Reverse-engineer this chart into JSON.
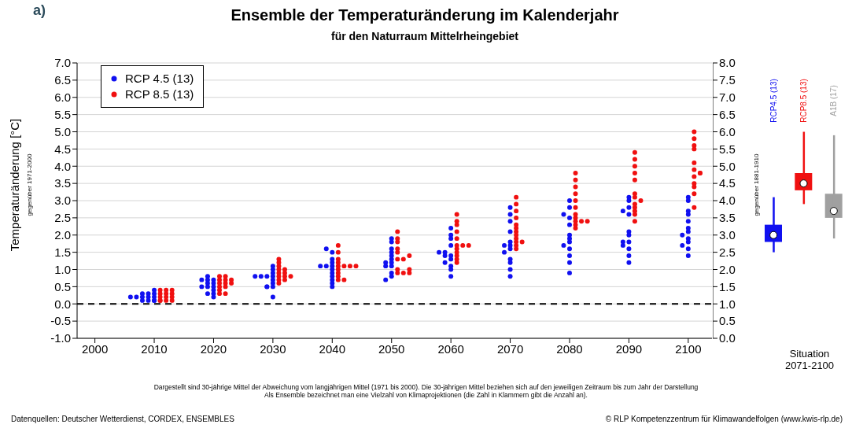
{
  "chart_data": [
    {
      "type": "scatter",
      "title": "Ensemble der Temperaturänderung im Kalenderjahr",
      "subtitle": "für den Naturraum Mittelrheingebiet",
      "ylabel": "Temperaturänderung [°C]",
      "annotations": [
        "a)",
        "gegenüber 1971-2000",
        "Dargestellt sind 30-jährige Mittel der Abweichung vom langjährigen Mittel (1971 bis 2000). Die 30-jährigen Mittel beziehen sich auf den jeweiligen Zeitraum bis zum Jahr der Darstellung",
        "Als Ensemble bezeichnet man eine Vielzahl von Klimaprojektionen (die Zahl in Klammern gibt die Anzahl an).",
        "Datenquellen: Deutscher Wetterdienst, CORDEX, ENSEMBLES",
        "© RLP Kompetenzzentrum für Klimawandelfolgen (www.kwis-rlp.de)"
      ],
      "xlim": [
        1997,
        2104
      ],
      "xticks": [
        2000,
        2010,
        2020,
        2030,
        2040,
        2050,
        2060,
        2070,
        2080,
        2090,
        2100
      ],
      "ylim": [
        -1,
        7
      ],
      "yticks": [
        {
          "value": -1,
          "label": "-1.0"
        },
        {
          "value": -0.5,
          "label": "-0.5"
        },
        {
          "value": 0,
          "label": "0.0"
        },
        {
          "value": 0.5,
          "label": "0.5"
        },
        {
          "value": 1,
          "label": "1.0"
        },
        {
          "value": 1.5,
          "label": "1.5"
        },
        {
          "value": 2,
          "label": "2.0"
        },
        {
          "value": 2.5,
          "label": "2.5"
        },
        {
          "value": 3,
          "label": "3.0"
        },
        {
          "value": 3.5,
          "label": "3.5"
        },
        {
          "value": 4,
          "label": "4.0"
        },
        {
          "value": 4.5,
          "label": "4.5"
        },
        {
          "value": 5,
          "label": "5.0"
        },
        {
          "value": 5.5,
          "label": "5.5"
        },
        {
          "value": 6,
          "label": "6.0"
        },
        {
          "value": 6.5,
          "label": "6.5"
        },
        {
          "value": 7,
          "label": "7.0"
        }
      ],
      "grid": "y",
      "legend": "top left",
      "marker": "circle",
      "ref_lines": [
        {
          "axis": "y",
          "value": 0,
          "color": "#000000",
          "line_style": "dashed"
        }
      ],
      "series": [
        {
          "name": "RCP 4.5 (13)",
          "color": "#1010f0",
          "x": [
            2006,
            2007,
            2008,
            2008,
            2009,
            2009,
            2009,
            2010,
            2010,
            2010,
            2010,
            2010,
            2008,
            2018,
            2018,
            2019,
            2019,
            2019,
            2019,
            2020,
            2020,
            2020,
            2020,
            2020,
            2020,
            2019,
            2030,
            2029,
            2030,
            2030,
            2027,
            2028,
            2029,
            2030,
            2030,
            2030,
            2030,
            2029,
            2030,
            2040,
            2040,
            2040,
            2040,
            2040,
            2040,
            2038,
            2039,
            2040,
            2040,
            2040,
            2040,
            2039,
            2049,
            2050,
            2050,
            2049,
            2050,
            2049,
            2050,
            2050,
            2050,
            2050,
            2050,
            2050,
            2050,
            2060,
            2060,
            2060,
            2059,
            2060,
            2059,
            2060,
            2058,
            2059,
            2060,
            2060,
            2060,
            2060,
            2070,
            2070,
            2070,
            2070,
            2069,
            2070,
            2069,
            2070,
            2070,
            2070,
            2070,
            2070,
            2070,
            2080,
            2080,
            2080,
            2080,
            2079,
            2080,
            2080,
            2080,
            2080,
            2080,
            2079,
            2080,
            2080,
            2090,
            2090,
            2090,
            2089,
            2090,
            2090,
            2090,
            2090,
            2090,
            2090,
            2090,
            2089,
            2089,
            2100,
            2100,
            2099,
            2100,
            2100,
            2099,
            2100,
            2100,
            2100,
            2100,
            2100,
            2100,
            2100
          ],
          "values": [
            0.2,
            0.2,
            0.2,
            0.3,
            0.2,
            0.3,
            0.1,
            0.1,
            0.1,
            0.2,
            0.3,
            0.4,
            0.1,
            0.5,
            0.7,
            0.3,
            0.5,
            0.6,
            0.7,
            0.2,
            0.3,
            0.4,
            0.5,
            0.6,
            0.7,
            0.8,
            0.2,
            0.5,
            0.5,
            0.6,
            0.8,
            0.8,
            0.8,
            0.8,
            0.9,
            1.0,
            1.1,
            0.5,
            0.7,
            0.5,
            0.6,
            0.7,
            0.8,
            0.9,
            1.0,
            1.1,
            1.1,
            1.1,
            1.2,
            1.3,
            1.5,
            1.6,
            0.7,
            0.8,
            0.9,
            1.1,
            1.1,
            1.2,
            1.2,
            1.3,
            1.4,
            1.5,
            1.6,
            1.8,
            1.9,
            0.8,
            1.0,
            1.1,
            1.2,
            1.3,
            1.4,
            1.4,
            1.5,
            1.5,
            1.7,
            1.9,
            2.0,
            2.2,
            0.8,
            1.0,
            1.2,
            1.3,
            1.5,
            1.6,
            1.7,
            1.7,
            1.8,
            2.1,
            2.4,
            2.6,
            2.8,
            0.9,
            1.2,
            1.4,
            1.6,
            1.7,
            1.8,
            1.9,
            2.0,
            2.3,
            2.5,
            2.6,
            2.8,
            3.0,
            1.2,
            1.4,
            1.6,
            1.7,
            1.8,
            2.0,
            2.1,
            2.6,
            2.8,
            3.0,
            3.1,
            2.7,
            1.8,
            1.4,
            1.6,
            1.7,
            1.8,
            1.9,
            2.0,
            2.1,
            2.2,
            2.4,
            2.6,
            2.7,
            3.0,
            3.1
          ]
        },
        {
          "name": "RCP 8.5 (13)",
          "color": "#f01010",
          "x": [
            2011,
            2011,
            2011,
            2011,
            2011,
            2012,
            2012,
            2012,
            2013,
            2013,
            2013,
            2013,
            2012,
            2021,
            2021,
            2021,
            2021,
            2021,
            2022,
            2022,
            2022,
            2022,
            2023,
            2023,
            2021,
            2022,
            2031,
            2031,
            2031,
            2032,
            2031,
            2031,
            2031,
            2031,
            2031,
            2033,
            2032,
            2032,
            2032,
            2041,
            2041,
            2041,
            2041,
            2041,
            2042,
            2043,
            2044,
            2041,
            2041,
            2041,
            2041,
            2042,
            2051,
            2052,
            2051,
            2053,
            2051,
            2052,
            2053,
            2051,
            2051,
            2051,
            2051,
            2051,
            2053,
            2061,
            2061,
            2061,
            2061,
            2061,
            2061,
            2062,
            2063,
            2061,
            2061,
            2061,
            2061,
            2061,
            2071,
            2071,
            2071,
            2071,
            2071,
            2071,
            2071,
            2071,
            2071,
            2071,
            2071,
            2071,
            2072,
            2081,
            2081,
            2081,
            2081,
            2081,
            2081,
            2081,
            2081,
            2081,
            2081,
            2081,
            2082,
            2083,
            2091,
            2091,
            2091,
            2091,
            2091,
            2092,
            2091,
            2091,
            2091,
            2091,
            2091,
            2091,
            2091,
            2101,
            2101,
            2101,
            2101,
            2101,
            2102,
            2101,
            2101,
            2101,
            2101,
            2101,
            2101,
            2102
          ],
          "values": [
            0.1,
            0.1,
            0.2,
            0.3,
            0.4,
            0.1,
            0.3,
            0.4,
            0.1,
            0.3,
            0.4,
            0.2,
            0.2,
            0.3,
            0.4,
            0.5,
            0.7,
            0.8,
            0.3,
            0.5,
            0.6,
            0.7,
            0.6,
            0.7,
            0.6,
            0.8,
            0.6,
            0.7,
            0.8,
            0.8,
            0.9,
            1.0,
            1.1,
            1.2,
            1.3,
            0.8,
            0.7,
            0.9,
            1.0,
            0.7,
            0.8,
            0.9,
            1.0,
            1.1,
            1.1,
            1.1,
            1.1,
            1.2,
            1.3,
            1.5,
            1.7,
            0.7,
            0.9,
            0.9,
            1.0,
            1.0,
            1.3,
            1.3,
            1.4,
            1.5,
            1.6,
            1.8,
            1.9,
            2.1,
            0.9,
            1.2,
            1.3,
            1.4,
            1.5,
            1.6,
            1.7,
            1.7,
            1.7,
            1.9,
            2.1,
            2.3,
            2.4,
            2.6,
            1.6,
            1.7,
            1.8,
            1.9,
            2.0,
            2.1,
            2.2,
            2.3,
            2.5,
            2.7,
            2.9,
            3.1,
            1.8,
            2.2,
            2.3,
            2.4,
            2.5,
            2.6,
            2.8,
            3.0,
            3.2,
            3.4,
            3.6,
            3.8,
            2.4,
            2.4,
            2.4,
            2.6,
            2.7,
            2.8,
            2.9,
            3.0,
            3.1,
            3.2,
            3.6,
            3.8,
            4.0,
            4.2,
            4.4,
            2.8,
            3.2,
            3.4,
            3.5,
            3.7,
            3.8,
            3.9,
            4.1,
            4.5,
            4.6,
            4.8,
            5.0,
            3.8
          ]
        }
      ]
    },
    {
      "type": "box",
      "xlabel": "Situation 2071-2100",
      "ylabel": "gegenüber 1881-1910",
      "categories": [
        "RCP4.5 (13)",
        "RCP8.5 (13)",
        "A1B (17)"
      ],
      "colors": [
        "#1010f0",
        "#f01010",
        "#a0a0a0"
      ],
      "ylim": [
        0,
        8
      ],
      "yticks": [
        {
          "value": 0,
          "label": "0.0"
        },
        {
          "value": 0.5,
          "label": "0.5"
        },
        {
          "value": 1,
          "label": "1.0"
        },
        {
          "value": 1.5,
          "label": "1.5"
        },
        {
          "value": 2,
          "label": "2.0"
        },
        {
          "value": 2.5,
          "label": "2.5"
        },
        {
          "value": 3,
          "label": "3.0"
        },
        {
          "value": 3.5,
          "label": "3.5"
        },
        {
          "value": 4,
          "label": "4.0"
        },
        {
          "value": 4.5,
          "label": "4.5"
        },
        {
          "value": 5,
          "label": "5.0"
        },
        {
          "value": 5.5,
          "label": "5.5"
        },
        {
          "value": 6,
          "label": "6.0"
        },
        {
          "value": 6.5,
          "label": "6.5"
        },
        {
          "value": 7,
          "label": "7.0"
        },
        {
          "value": 7.5,
          "label": "7.5"
        },
        {
          "value": 8,
          "label": "8.0"
        }
      ],
      "boxes": [
        {
          "low": 2.5,
          "q1": 2.8,
          "median": 3.0,
          "q3": 3.3,
          "high": 4.1
        },
        {
          "low": 3.9,
          "q1": 4.3,
          "median": 4.5,
          "q3": 4.8,
          "high": 6.0
        },
        {
          "low": 2.9,
          "q1": 3.5,
          "median": 3.7,
          "q3": 4.2,
          "high": 5.9
        }
      ]
    }
  ]
}
